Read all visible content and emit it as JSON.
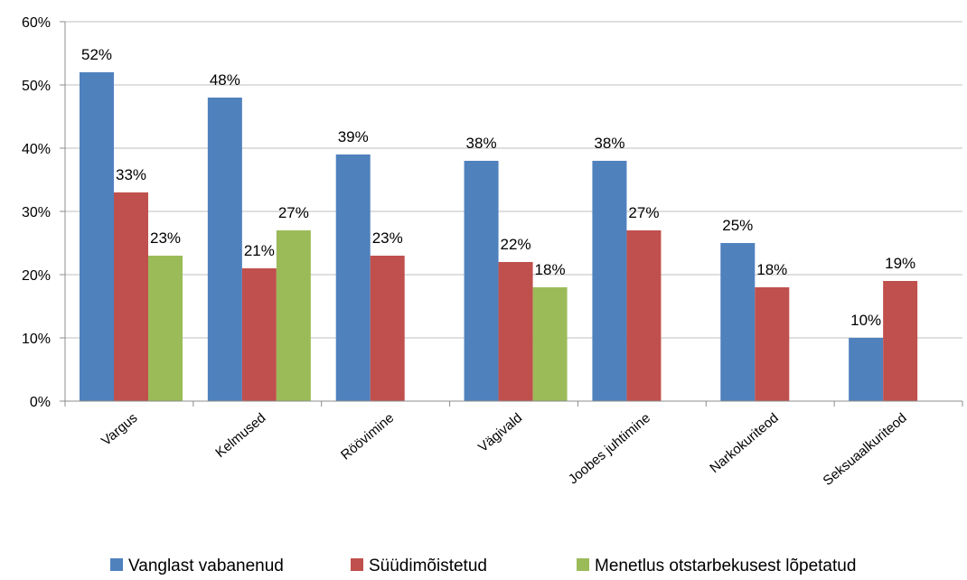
{
  "chart_data": {
    "type": "bar",
    "categories": [
      "Vargus",
      "Kelmused",
      "Röövimine",
      "Vägivald",
      "Joobes juhtimine",
      "Narkokuriteod",
      "Seksuaalkuriteod"
    ],
    "series": [
      {
        "name": "Vanglast vabanenud",
        "color": "#4f81bd",
        "values": [
          52,
          48,
          39,
          38,
          38,
          25,
          10
        ]
      },
      {
        "name": "Süüdimõistetud",
        "color": "#c0504d",
        "values": [
          33,
          21,
          23,
          22,
          27,
          18,
          19
        ]
      },
      {
        "name": "Menetlus otstarbekusest lõpetatud",
        "color": "#9bbb59",
        "values": [
          23,
          27,
          null,
          18,
          null,
          null,
          null
        ]
      }
    ],
    "ylim": [
      0,
      60
    ],
    "yticks": [
      "0%",
      "10%",
      "20%",
      "30%",
      "40%",
      "50%",
      "60%"
    ],
    "value_suffix": "%",
    "grid": true,
    "legend": "bottom"
  }
}
